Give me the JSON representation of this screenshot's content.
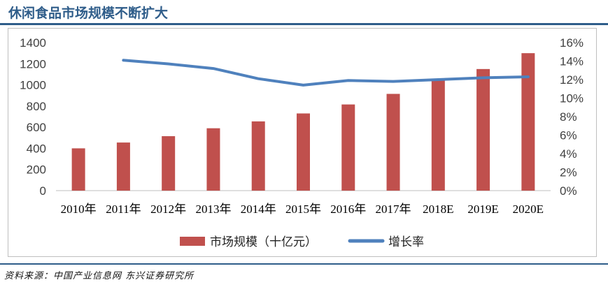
{
  "title": "休闲食品市场规模不断扩大",
  "source": "资料来源：中国产业信息网 东兴证券研究所",
  "colors": {
    "bar": "#c0504d",
    "line": "#4f81bd",
    "title": "#2f5d8a"
  },
  "chart_data": {
    "type": "bar+line",
    "categories": [
      "2010年",
      "2011年",
      "2012年",
      "2013年",
      "2014年",
      "2015年",
      "2016年",
      "2017年",
      "2018E",
      "2019E",
      "2020E"
    ],
    "series": [
      {
        "name": "市场规模（十亿元）",
        "type": "bar",
        "axis": "left",
        "values": [
          400,
          455,
          515,
          590,
          655,
          730,
          815,
          915,
          1045,
          1150,
          1300
        ]
      },
      {
        "name": "增长率",
        "type": "line",
        "axis": "right",
        "values": [
          null,
          14.1,
          13.7,
          13.2,
          12.1,
          11.4,
          11.9,
          11.8,
          12.0,
          12.2,
          12.3
        ]
      }
    ],
    "left_axis": {
      "min": 0,
      "max": 1400,
      "ticks": [
        "0",
        "200",
        "400",
        "600",
        "800",
        "1000",
        "1200",
        "1400"
      ]
    },
    "right_axis": {
      "min": 0,
      "max": 16,
      "ticks": [
        "0%",
        "2%",
        "4%",
        "6%",
        "8%",
        "10%",
        "12%",
        "14%",
        "16%"
      ]
    },
    "legend": [
      "市场规模（十亿元）",
      "增长率"
    ],
    "legend_position": "bottom"
  }
}
